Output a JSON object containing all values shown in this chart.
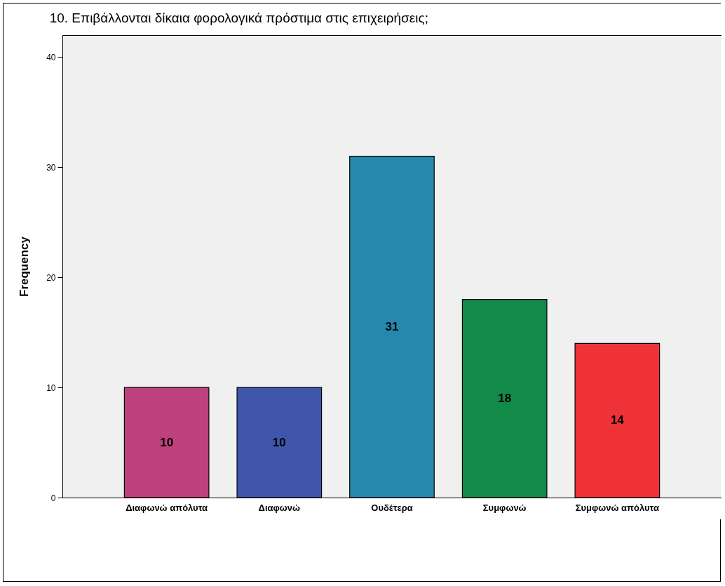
{
  "chart_data": {
    "type": "bar",
    "title": "10. Επιβάλλονται δίκαια φορολογικά πρόστιμα στις επιχειρήσεις;",
    "ylabel": "Frequency",
    "categories": [
      "Διαφωνώ απόλυτα",
      "Διαφωνώ",
      "Ουδέτερα",
      "Συμφωνώ",
      "Συμφωνώ απόλυτα"
    ],
    "values": [
      10,
      10,
      31,
      18,
      14
    ],
    "colors": [
      "#bc417c",
      "#3f56aa",
      "#2589ad",
      "#128a48",
      "#ef3138"
    ],
    "ylim": [
      0,
      42
    ],
    "yticks": [
      0,
      10,
      20,
      30,
      40
    ],
    "grid": false,
    "data_labels": true,
    "legend": false
  }
}
